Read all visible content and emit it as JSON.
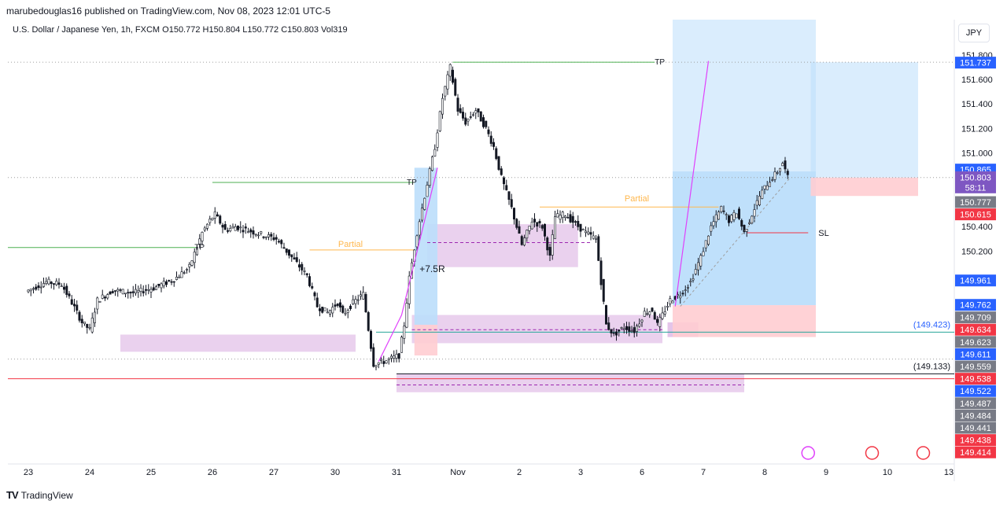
{
  "header": {
    "published": "marubedouglas16 published on TradingView.com, Nov 08, 2023 12:01 UTC-5",
    "symbol_line": "U.S. Dollar / Japanese Yen, 1h, FXCM  O150.772  H150.804  L150.772  C150.803  Vol319"
  },
  "currency_button": "JPY",
  "footer": {
    "logo_text": "TradingView"
  },
  "colors": {
    "up": "#131722",
    "down": "#131722",
    "zone_fill": "#e1bee7",
    "target_fill": "#bbdefb",
    "stop_fill": "#ffcdd2",
    "blue_label": "#2962ff",
    "red_label": "#f23645",
    "grey_label": "#787b86",
    "purple_label": "#7e57c2"
  },
  "chart_data": {
    "type": "candlestick",
    "y_range": [
      149.35,
      151.9
    ],
    "y_ticks": [
      "151.800",
      "151.600",
      "151.400",
      "151.200",
      "151.000",
      "150.400",
      "150.200"
    ],
    "x_ticks": [
      {
        "t": 0,
        "label": "23"
      },
      {
        "t": 24,
        "label": "24"
      },
      {
        "t": 48,
        "label": "25"
      },
      {
        "t": 72,
        "label": "26"
      },
      {
        "t": 96,
        "label": "27"
      },
      {
        "t": 120,
        "label": "30"
      },
      {
        "t": 144,
        "label": "31"
      },
      {
        "t": 168,
        "label": "Nov"
      },
      {
        "t": 192,
        "label": "2"
      },
      {
        "t": 216,
        "label": "3"
      },
      {
        "t": 240,
        "label": "6"
      },
      {
        "t": 264,
        "label": "7"
      },
      {
        "t": 288,
        "label": "8"
      },
      {
        "t": 312,
        "label": "9"
      },
      {
        "t": 336,
        "label": "10"
      },
      {
        "t": 360,
        "label": "13"
      }
    ],
    "path": [
      [
        0,
        149.87
      ],
      [
        8,
        149.95
      ],
      [
        14,
        149.93
      ],
      [
        18,
        149.78
      ],
      [
        22,
        149.62
      ],
      [
        25,
        149.56
      ],
      [
        28,
        149.8
      ],
      [
        34,
        149.88
      ],
      [
        42,
        149.86
      ],
      [
        50,
        149.9
      ],
      [
        58,
        149.97
      ],
      [
        64,
        150.07
      ],
      [
        69,
        150.35
      ],
      [
        72,
        150.45
      ],
      [
        74,
        150.5
      ],
      [
        78,
        150.37
      ],
      [
        82,
        150.4
      ],
      [
        90,
        150.35
      ],
      [
        98,
        150.3
      ],
      [
        104,
        150.15
      ],
      [
        110,
        150.0
      ],
      [
        114,
        149.75
      ],
      [
        118,
        149.7
      ],
      [
        122,
        149.78
      ],
      [
        124,
        149.68
      ],
      [
        128,
        149.78
      ],
      [
        132,
        149.85
      ],
      [
        136,
        149.28
      ],
      [
        140,
        149.3
      ],
      [
        146,
        149.35
      ],
      [
        148,
        149.6
      ],
      [
        150,
        149.98
      ],
      [
        153,
        150.35
      ],
      [
        156,
        150.65
      ],
      [
        160,
        151.05
      ],
      [
        163,
        151.45
      ],
      [
        166,
        151.7
      ],
      [
        169,
        151.35
      ],
      [
        172,
        151.25
      ],
      [
        176,
        151.35
      ],
      [
        180,
        151.2
      ],
      [
        183,
        151.05
      ],
      [
        186,
        150.8
      ],
      [
        190,
        150.55
      ],
      [
        194,
        150.25
      ],
      [
        198,
        150.45
      ],
      [
        202,
        150.4
      ],
      [
        205,
        150.15
      ],
      [
        207,
        150.48
      ],
      [
        211,
        150.5
      ],
      [
        215,
        150.42
      ],
      [
        219,
        150.35
      ],
      [
        223,
        150.3
      ],
      [
        227,
        149.6
      ],
      [
        230,
        149.52
      ],
      [
        234,
        149.58
      ],
      [
        238,
        149.55
      ],
      [
        242,
        149.7
      ],
      [
        245,
        149.72
      ],
      [
        247,
        149.6
      ],
      [
        250,
        149.72
      ],
      [
        252,
        149.8
      ],
      [
        256,
        149.85
      ],
      [
        260,
        149.95
      ],
      [
        264,
        150.15
      ],
      [
        268,
        150.4
      ],
      [
        272,
        150.55
      ],
      [
        275,
        150.45
      ],
      [
        278,
        150.52
      ],
      [
        281,
        150.35
      ],
      [
        284,
        150.5
      ],
      [
        287,
        150.65
      ],
      [
        290,
        150.75
      ],
      [
        294,
        150.85
      ],
      [
        296,
        150.92
      ],
      [
        298,
        150.8
      ]
    ],
    "price_levels": [
      {
        "label": "151.737",
        "price": 151.737,
        "color": "#2962ff"
      },
      {
        "label": "150.865",
        "price": 150.865,
        "color": "#2962ff"
      },
      {
        "label": "150.803",
        "price": 150.803,
        "color": "#7e57c2"
      },
      {
        "label": "58:11",
        "price": 150.72,
        "color": "#7e57c2"
      },
      {
        "label": "150.777",
        "price": 150.6,
        "color": "#787b86"
      },
      {
        "label": "150.615",
        "price": 150.5,
        "color": "#f23645"
      },
      {
        "label": "149.961",
        "price": 149.961,
        "color": "#2962ff"
      },
      {
        "label": "149.762",
        "price": 149.762,
        "color": "#2962ff"
      },
      {
        "label": "149.709",
        "price": 149.66,
        "color": "#787b86"
      },
      {
        "label": "149.634",
        "price": 149.56,
        "color": "#f23645"
      },
      {
        "label": "149.623",
        "price": 149.46,
        "color": "#787b86"
      },
      {
        "label": "149.611",
        "price": 149.36,
        "color": "#2962ff"
      },
      {
        "label": "149.559",
        "price": 149.26,
        "color": "#787b86"
      },
      {
        "label": "149.538",
        "price": 149.16,
        "color": "#f23645"
      },
      {
        "label": "149.522",
        "price": 149.06,
        "color": "#2962ff"
      },
      {
        "label": "149.487",
        "price": 148.96,
        "color": "#787b86"
      },
      {
        "label": "149.484",
        "price": 148.86,
        "color": "#787b86"
      },
      {
        "label": "149.441",
        "price": 148.76,
        "color": "#787b86"
      },
      {
        "label": "149.438",
        "price": 148.66,
        "color": "#f23645"
      },
      {
        "label": "149.414",
        "price": 148.56,
        "color": "#f23645"
      }
    ],
    "annotations": {
      "tp": "TP",
      "partial": "Partial",
      "sl": "SL",
      "gain": "+7.5R",
      "level_a": "(149.423)",
      "level_b": "(149.133)"
    }
  }
}
